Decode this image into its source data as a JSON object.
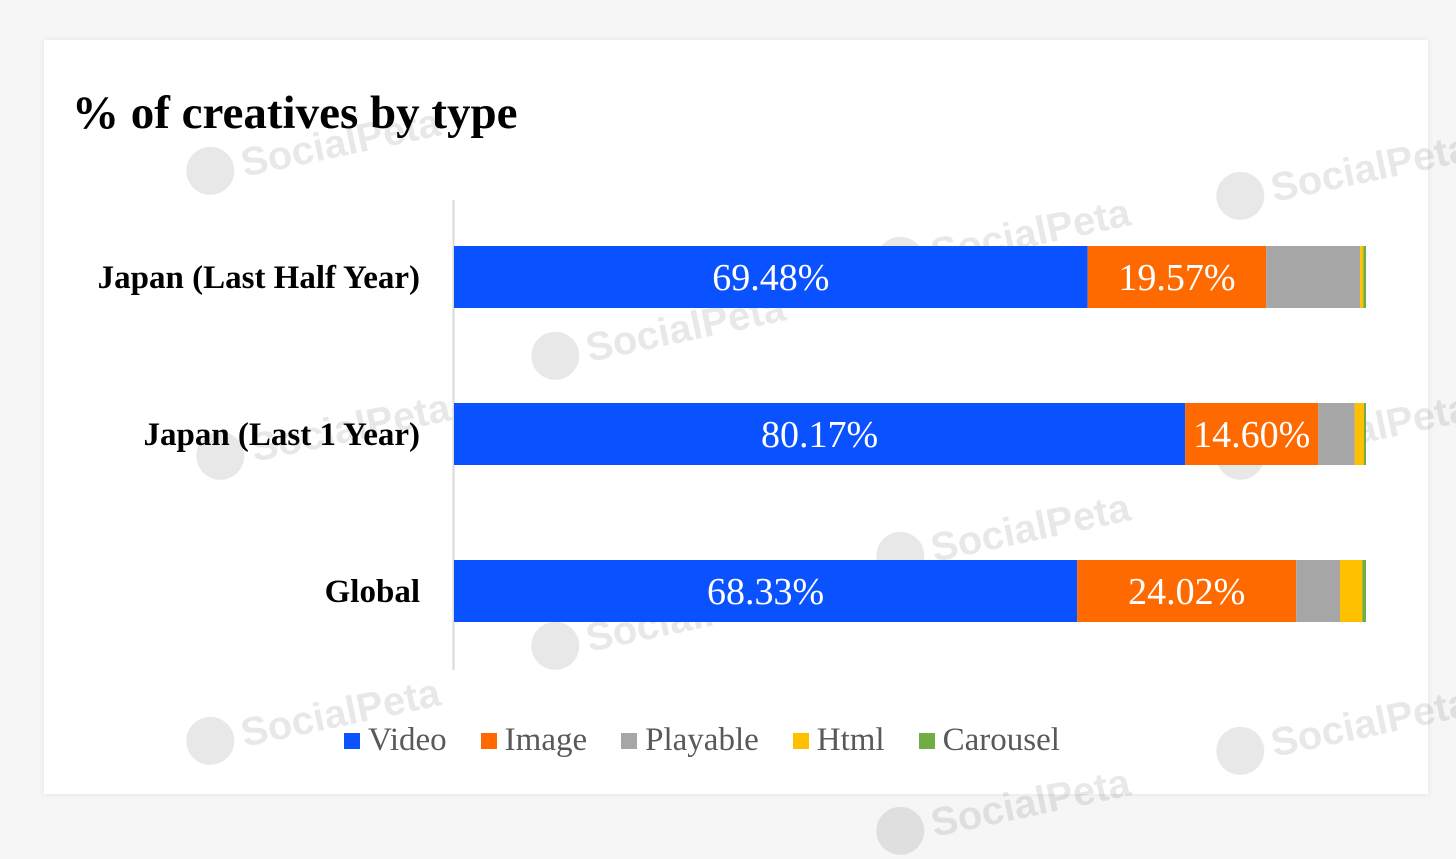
{
  "chart_data": {
    "type": "bar",
    "orientation": "horizontal",
    "stacked": true,
    "percent_stacked": true,
    "title": "% of creatives by type",
    "categories": [
      "Japan (Last Half Year)",
      "Japan (Last 1 Year)",
      "Global"
    ],
    "series": [
      {
        "name": "Video",
        "color": "#0a52ff",
        "values": [
          69.48,
          80.17,
          68.33
        ]
      },
      {
        "name": "Image",
        "color": "#ff6a00",
        "values": [
          19.57,
          14.6,
          24.02
        ]
      },
      {
        "name": "Playable",
        "color": "#a6a6a6",
        "values": [
          10.3,
          4.0,
          4.8
        ]
      },
      {
        "name": "Html",
        "color": "#ffc000",
        "values": [
          0.35,
          1.0,
          2.45
        ]
      },
      {
        "name": "Carousel",
        "color": "#70ad47",
        "values": [
          0.3,
          0.23,
          0.4
        ]
      }
    ],
    "data_labels": [
      [
        "69.48%",
        "19.57%",
        "",
        "",
        ""
      ],
      [
        "80.17%",
        "14.60%",
        "",
        "",
        ""
      ],
      [
        "68.33%",
        "24.02%",
        "",
        "",
        ""
      ]
    ],
    "xlim": [
      0,
      100
    ],
    "grid": false,
    "legend_position": "bottom"
  },
  "watermark_text": "SocialPeta"
}
